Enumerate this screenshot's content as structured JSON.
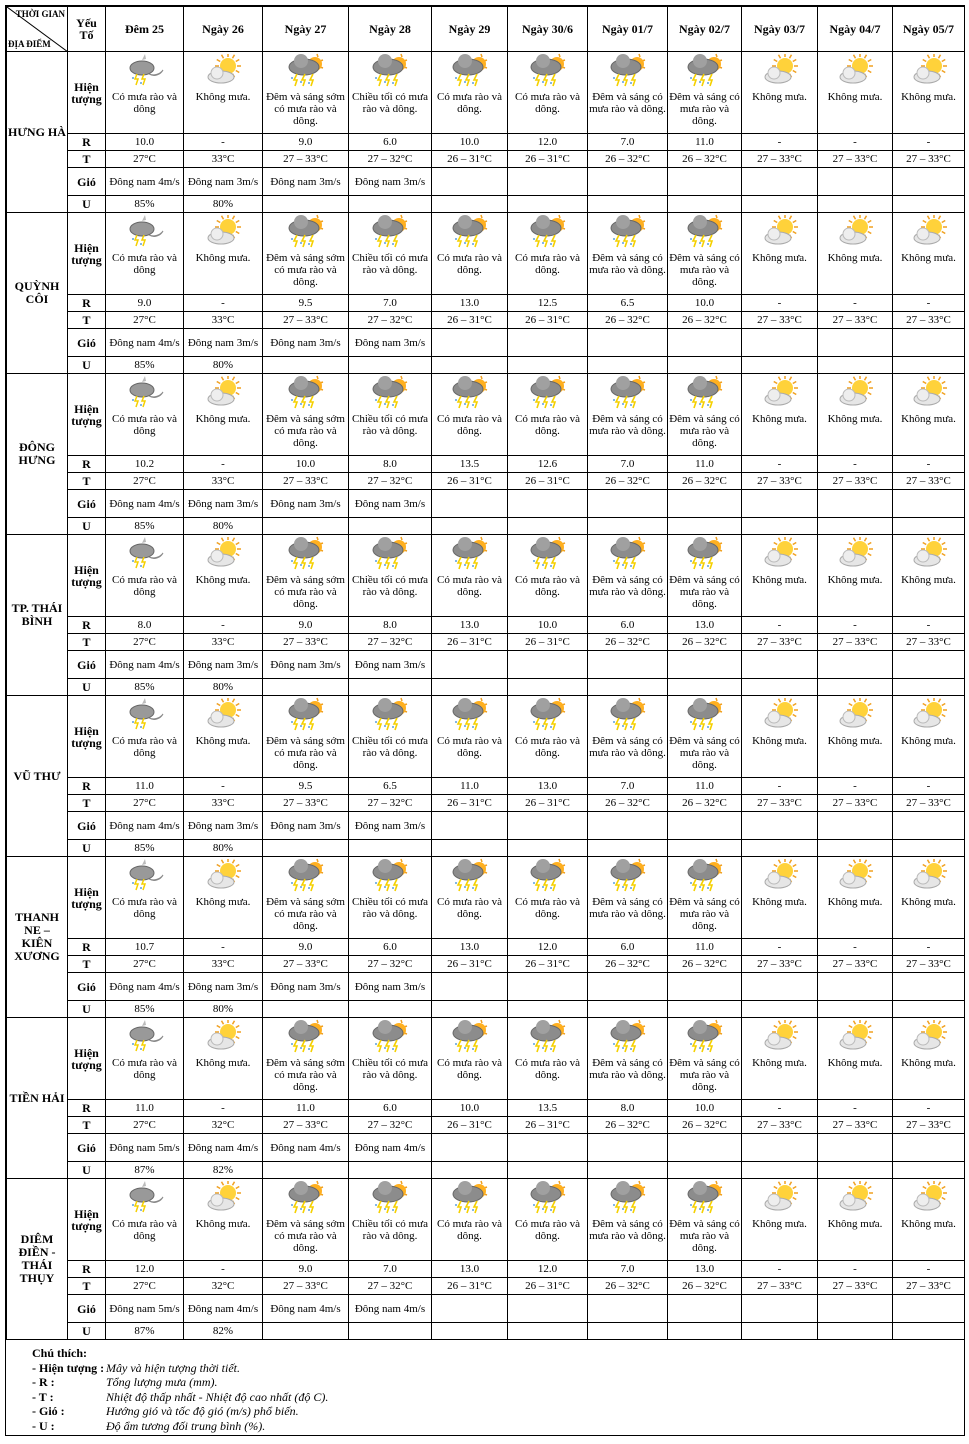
{
  "header": {
    "time_label": "THỜI GIAN",
    "place_label": "ĐỊA ĐIỂM",
    "factor_label": "Yếu Tố",
    "days": [
      "Đêm 25",
      "Ngày 26",
      "Ngày 27",
      "Ngày 28",
      "Ngày 29",
      "Ngày 30/6",
      "Ngày 01/7",
      "Ngày 02/7",
      "Ngày 03/7",
      "Ngày 04/7",
      "Ngày 05/7"
    ]
  },
  "row_labels": {
    "phenomenon": "Hiện tượng",
    "R": "R",
    "T": "T",
    "wind": "Gió",
    "U": "U"
  },
  "icons": [
    "night-thunderstorm",
    "partly-cloudy",
    "thunderstorm",
    "thunderstorm",
    "thunderstorm",
    "thunderstorm",
    "thunderstorm",
    "thunderstorm",
    "partly-cloudy",
    "partly-cloudy",
    "partly-cloudy"
  ],
  "stations": [
    {
      "name": "HƯNG HÀ",
      "desc": [
        "Có mưa rào và dông",
        "Không mưa.",
        "Đêm và sáng sớm có mưa rào và dông.",
        "Chiều tối có mưa rào và dông.",
        "Có mưa rào và dông.",
        "Có mưa rào và dông.",
        "Đêm và sáng có mưa rào và dông.",
        "Đêm và sáng có mưa rào và dông.",
        "Không mưa.",
        "Không mưa.",
        "Không mưa."
      ],
      "R": [
        "10.0",
        "-",
        "9.0",
        "6.0",
        "10.0",
        "12.0",
        "7.0",
        "11.0",
        "-",
        "-",
        "-"
      ],
      "T": [
        "27°C",
        "33°C",
        "27 – 33°C",
        "27 – 32°C",
        "26 – 31°C",
        "26 – 31°C",
        "26 – 32°C",
        "26 – 32°C",
        "27 – 33°C",
        "27 – 33°C",
        "27 – 33°C"
      ],
      "wind": [
        "Đông nam 4m/s",
        "Đông nam 3m/s",
        "Đông nam 3m/s",
        "Đông nam 3m/s",
        "",
        "",
        "",
        "",
        "",
        "",
        ""
      ],
      "U": [
        "85%",
        "80%",
        "",
        "",
        "",
        "",
        "",
        "",
        "",
        "",
        ""
      ]
    },
    {
      "name": "QUỲNH CÔI",
      "desc": [
        "Có mưa rào và dông",
        "Không mưa.",
        "Đêm và sáng sớm có mưa rào và dông.",
        "Chiều tối có mưa rào và dông.",
        "Có mưa rào và dông.",
        "Có mưa rào và dông.",
        "Đêm và sáng có mưa rào và dông.",
        "Đêm và sáng có mưa rào và dông.",
        "Không mưa.",
        "Không mưa.",
        "Không mưa."
      ],
      "R": [
        "9.0",
        "-",
        "9.5",
        "7.0",
        "13.0",
        "12.5",
        "6.5",
        "10.0",
        "-",
        "-",
        "-"
      ],
      "T": [
        "27°C",
        "33°C",
        "27 – 33°C",
        "27 – 32°C",
        "26 – 31°C",
        "26 – 31°C",
        "26 – 32°C",
        "26 – 32°C",
        "27 – 33°C",
        "27 – 33°C",
        "27 – 33°C"
      ],
      "wind": [
        "Đông nam 4m/s",
        "Đông nam 3m/s",
        "Đông nam 3m/s",
        "Đông nam 3m/s",
        "",
        "",
        "",
        "",
        "",
        "",
        ""
      ],
      "U": [
        "85%",
        "80%",
        "",
        "",
        "",
        "",
        "",
        "",
        "",
        "",
        ""
      ]
    },
    {
      "name": "ĐÔNG HƯNG",
      "desc": [
        "Có mưa rào và dông",
        "Không mưa.",
        "Đêm và sáng sớm có mưa rào và dông.",
        "Chiều tối có mưa rào và dông.",
        "Có mưa rào và dông.",
        "Có mưa rào và dông.",
        "Đêm và sáng có mưa rào và dông.",
        "Đêm và sáng có mưa rào và dông.",
        "Không mưa.",
        "Không mưa.",
        "Không mưa."
      ],
      "R": [
        "10.2",
        "-",
        "10.0",
        "8.0",
        "13.5",
        "12.6",
        "7.0",
        "11.0",
        "-",
        "-",
        "-"
      ],
      "T": [
        "27°C",
        "33°C",
        "27 – 33°C",
        "27 – 32°C",
        "26 – 31°C",
        "26 – 31°C",
        "26 – 32°C",
        "26 – 32°C",
        "27 – 33°C",
        "27 – 33°C",
        "27 – 33°C"
      ],
      "wind": [
        "Đông nam 4m/s",
        "Đông nam 3m/s",
        "Đông nam 3m/s",
        "Đông nam 3m/s",
        "",
        "",
        "",
        "",
        "",
        "",
        ""
      ],
      "U": [
        "85%",
        "80%",
        "",
        "",
        "",
        "",
        "",
        "",
        "",
        "",
        ""
      ]
    },
    {
      "name": "TP. THÁI BÌNH",
      "desc": [
        "Có mưa rào và dông",
        "Không mưa.",
        "Đêm và sáng sớm có mưa rào và dông.",
        "Chiều tối có mưa rào và dông.",
        "Có mưa rào và dông.",
        "Có mưa rào và dông.",
        "Đêm và sáng có mưa rào và dông.",
        "Đêm và sáng có mưa rào và dông.",
        "Không mưa.",
        "Không mưa.",
        "Không mưa."
      ],
      "R": [
        "8.0",
        "-",
        "9.0",
        "8.0",
        "13.0",
        "10.0",
        "6.0",
        "13.0",
        "-",
        "-",
        "-"
      ],
      "T": [
        "27°C",
        "33°C",
        "27 – 33°C",
        "27 – 32°C",
        "26 – 31°C",
        "26 – 31°C",
        "26 – 32°C",
        "26 – 32°C",
        "27 – 33°C",
        "27 – 33°C",
        "27 – 33°C"
      ],
      "wind": [
        "Đông nam 4m/s",
        "Đông nam 3m/s",
        "Đông nam 3m/s",
        "Đông nam 3m/s",
        "",
        "",
        "",
        "",
        "",
        "",
        ""
      ],
      "U": [
        "85%",
        "80%",
        "",
        "",
        "",
        "",
        "",
        "",
        "",
        "",
        ""
      ]
    },
    {
      "name": "VŨ THƯ",
      "desc": [
        "Có mưa rào và dông",
        "Không mưa.",
        "Đêm và sáng sớm có mưa rào và dông.",
        "Chiều tối có mưa rào và dông.",
        "Có mưa rào và dông.",
        "Có mưa rào và dông.",
        "Đêm và sáng có mưa rào và dông.",
        "Đêm và sáng có mưa rào và dông.",
        "Không mưa.",
        "Không mưa.",
        "Không mưa."
      ],
      "R": [
        "11.0",
        "-",
        "9.5",
        "6.5",
        "11.0",
        "13.0",
        "7.0",
        "11.0",
        "-",
        "-",
        "-"
      ],
      "T": [
        "27°C",
        "33°C",
        "27 – 33°C",
        "27 – 32°C",
        "26 – 31°C",
        "26 – 31°C",
        "26 – 32°C",
        "26 – 32°C",
        "27 – 33°C",
        "27 – 33°C",
        "27 – 33°C"
      ],
      "wind": [
        "Đông nam 4m/s",
        "Đông nam 3m/s",
        "Đông nam 3m/s",
        "Đông nam 3m/s",
        "",
        "",
        "",
        "",
        "",
        "",
        ""
      ],
      "U": [
        "85%",
        "80%",
        "",
        "",
        "",
        "",
        "",
        "",
        "",
        "",
        ""
      ]
    },
    {
      "name": "THANH NE – KIÊN XƯƠNG",
      "desc": [
        "Có mưa rào và dông",
        "Không mưa.",
        "Đêm và sáng sớm có mưa rào và dông.",
        "Chiều tối có mưa rào và dông.",
        "Có mưa rào và dông.",
        "Có mưa rào và dông.",
        "Đêm và sáng có mưa rào và dông.",
        "Đêm và sáng có mưa rào và dông.",
        "Không mưa.",
        "Không mưa.",
        "Không mưa."
      ],
      "R": [
        "10.7",
        "-",
        "9.0",
        "6.0",
        "13.0",
        "12.0",
        "6.0",
        "11.0",
        "-",
        "-",
        "-"
      ],
      "T": [
        "27°C",
        "33°C",
        "27 – 33°C",
        "27 – 32°C",
        "26 – 31°C",
        "26 – 31°C",
        "26 – 32°C",
        "26 – 32°C",
        "27 – 33°C",
        "27 – 33°C",
        "27 – 33°C"
      ],
      "wind": [
        "Đông nam 4m/s",
        "Đông nam 3m/s",
        "Đông nam 3m/s",
        "Đông nam 3m/s",
        "",
        "",
        "",
        "",
        "",
        "",
        ""
      ],
      "U": [
        "85%",
        "80%",
        "",
        "",
        "",
        "",
        "",
        "",
        "",
        "",
        ""
      ]
    },
    {
      "name": "TIỀN HẢI",
      "desc": [
        "Có mưa rào và dông",
        "Không mưa.",
        "Đêm và sáng sớm có mưa rào và dông.",
        "Chiều tối có mưa rào và dông.",
        "Có mưa rào và dông.",
        "Có mưa rào và dông.",
        "Đêm và sáng có mưa rào và dông.",
        "Đêm và sáng có mưa rào và dông.",
        "Không mưa.",
        "Không mưa.",
        "Không mưa."
      ],
      "R": [
        "11.0",
        "-",
        "11.0",
        "6.0",
        "10.0",
        "13.5",
        "8.0",
        "10.0",
        "-",
        "-",
        "-"
      ],
      "T": [
        "27°C",
        "32°C",
        "27 – 33°C",
        "27 – 32°C",
        "26 – 31°C",
        "26 – 31°C",
        "26 – 32°C",
        "26 – 32°C",
        "27 – 33°C",
        "27 – 33°C",
        "27 – 33°C"
      ],
      "wind": [
        "Đông nam 5m/s",
        "Đông nam 4m/s",
        "Đông nam 4m/s",
        "Đông nam 4m/s",
        "",
        "",
        "",
        "",
        "",
        "",
        ""
      ],
      "U": [
        "87%",
        "82%",
        "",
        "",
        "",
        "",
        "",
        "",
        "",
        "",
        ""
      ]
    },
    {
      "name": "DIÊM ĐIỀN - THÁI THỤY",
      "desc": [
        "Có mưa rào và dông",
        "Không mưa.",
        "Đêm và sáng sớm có mưa rào và dông.",
        "Chiều tối có mưa rào và dông.",
        "Có mưa rào và dông.",
        "Có mưa rào và dông.",
        "Đêm và sáng có mưa rào và dông.",
        "Đêm và sáng có mưa rào và dông.",
        "Không mưa.",
        "Không mưa.",
        "Không mưa."
      ],
      "R": [
        "12.0",
        "-",
        "9.0",
        "7.0",
        "13.0",
        "12.0",
        "7.0",
        "13.0",
        "-",
        "-",
        "-"
      ],
      "T": [
        "27°C",
        "32°C",
        "27 – 33°C",
        "27 – 32°C",
        "26 – 31°C",
        "26 – 31°C",
        "26 – 32°C",
        "26 – 32°C",
        "27 – 33°C",
        "27 – 33°C",
        "27 – 33°C"
      ],
      "wind": [
        "Đông nam 5m/s",
        "Đông nam 4m/s",
        "Đông nam 4m/s",
        "Đông nam 4m/s",
        "",
        "",
        "",
        "",
        "",
        "",
        ""
      ],
      "U": [
        "87%",
        "82%",
        "",
        "",
        "",
        "",
        "",
        "",
        "",
        "",
        ""
      ]
    }
  ],
  "notes": {
    "title": "Chú thích:",
    "items": [
      {
        "key": "- Hiện tượng :",
        "desc": "Mây và hiện tượng thời tiết."
      },
      {
        "key": "- R        :",
        "desc": "Tổng lượng mưa (mm)."
      },
      {
        "key": "- T        :",
        "desc": "Nhiệt độ thấp nhất - Nhiệt độ cao nhất (độ C)."
      },
      {
        "key": "- Gió      :",
        "desc": "Hướng gió và tốc độ gió (m/s) phổ biến."
      },
      {
        "key": "- U        :",
        "desc": "Độ ẩm tương đối trung bình (%)."
      }
    ]
  }
}
